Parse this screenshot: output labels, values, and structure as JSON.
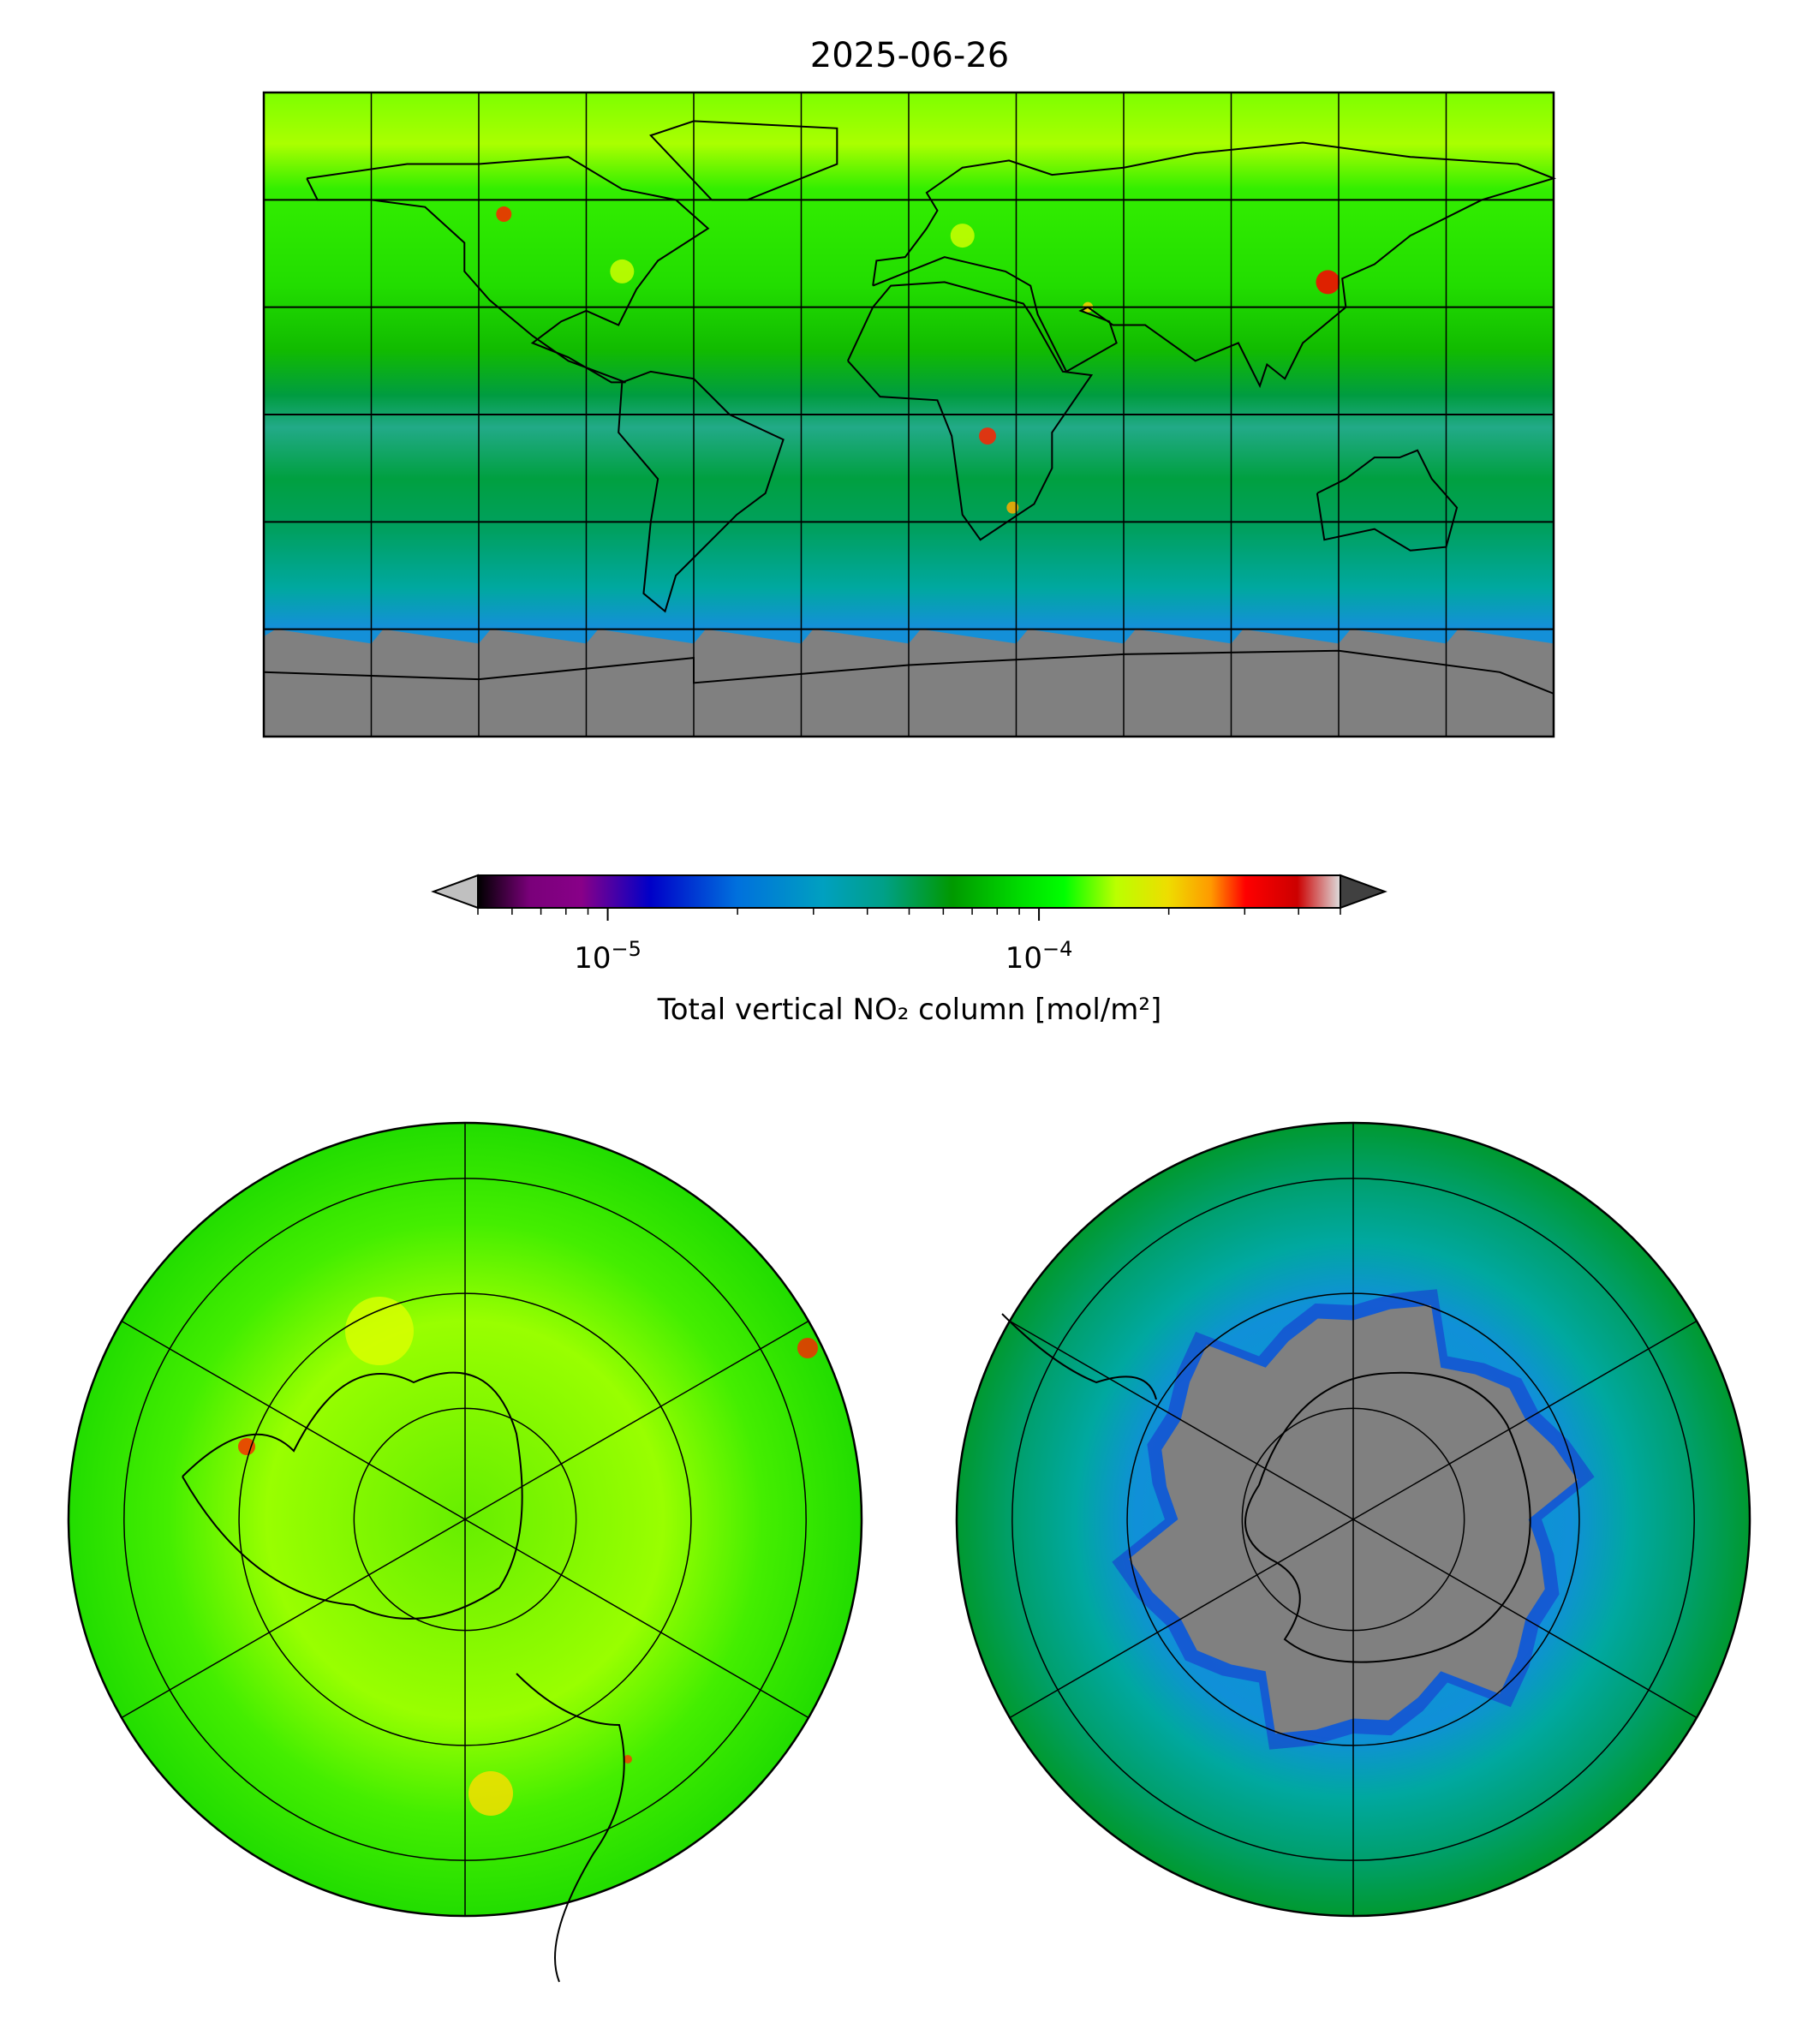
{
  "figure": {
    "title": "2025-06-26"
  },
  "colorbar": {
    "label": "Total vertical NO₂ column [mol/m²]",
    "scale": "log",
    "vmin": 5e-06,
    "vmax": 0.0005,
    "extend": "both",
    "under_color": "#c0c0c0",
    "over_color": "#404040",
    "major_ticks": [
      {
        "value": 1e-05,
        "label_base": "10",
        "label_exp": "−5"
      },
      {
        "value": 0.0001,
        "label_base": "10",
        "label_exp": "−4"
      }
    ],
    "minor_ticks": [
      5e-06,
      6e-06,
      7e-06,
      8e-06,
      9e-06,
      2e-05,
      3e-05,
      4e-05,
      5e-05,
      6e-05,
      7e-05,
      8e-05,
      9e-05,
      0.0002,
      0.0003,
      0.0004,
      0.0005
    ],
    "cmap_stops": [
      {
        "f": 0.0,
        "c": "#000000"
      },
      {
        "f": 0.06,
        "c": "#7a007a"
      },
      {
        "f": 0.12,
        "c": "#880088"
      },
      {
        "f": 0.2,
        "c": "#0000c8"
      },
      {
        "f": 0.3,
        "c": "#0070dd"
      },
      {
        "f": 0.4,
        "c": "#00a0c0"
      },
      {
        "f": 0.47,
        "c": "#00a088"
      },
      {
        "f": 0.55,
        "c": "#009900"
      },
      {
        "f": 0.63,
        "c": "#00dd00"
      },
      {
        "f": 0.68,
        "c": "#00ff00"
      },
      {
        "f": 0.74,
        "c": "#bbff00"
      },
      {
        "f": 0.8,
        "c": "#eedd00"
      },
      {
        "f": 0.85,
        "c": "#ff9900"
      },
      {
        "f": 0.89,
        "c": "#ff0000"
      },
      {
        "f": 0.95,
        "c": "#cc0000"
      },
      {
        "f": 1.0,
        "c": "#dddddd"
      }
    ],
    "no_data_color": "#808080"
  },
  "chart_data": {
    "type": "heatmap",
    "title": "2025-06-26",
    "panels": [
      "global-plate-carree",
      "north-polar-stereographic",
      "south-polar-stereographic"
    ],
    "colorbar_label": "Total vertical NO₂ column [mol/m²]",
    "color_range": [
      5e-06,
      0.0005
    ],
    "gridlines": {
      "lon_step_deg": 30,
      "lat_step_deg": 30
    },
    "hotspots": [
      "North China Plain",
      "Central Africa",
      "Western Canada",
      "Highveld South Africa"
    ]
  }
}
